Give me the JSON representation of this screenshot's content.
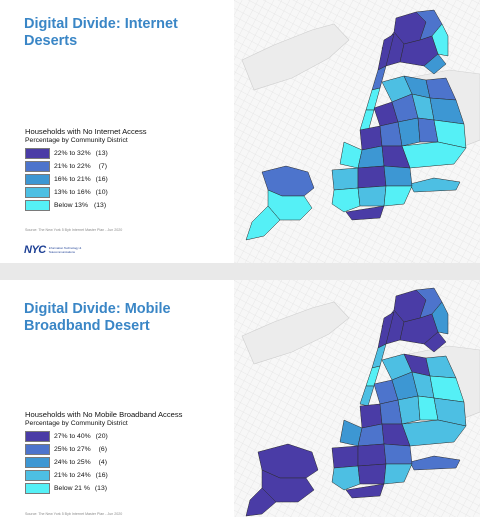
{
  "slides": [
    {
      "title": "Digital Divide: Internet Deserts",
      "legend": {
        "title": "Households with No Internet Access",
        "subtitle": "Percentage by Community District",
        "classes": [
          {
            "range": "22% to 32%",
            "count": "(13)",
            "color": "#4a3ca6"
          },
          {
            "range": "21% to 22%",
            "count": "(7)",
            "color": "#4d74cc"
          },
          {
            "range": "16% to 21%",
            "count": "(16)",
            "color": "#3d97d3"
          },
          {
            "range": "13% to 16%",
            "count": "(10)",
            "color": "#4dbfe3"
          },
          {
            "range": "Below 13%",
            "count": "(13)",
            "color": "#55f0f6"
          }
        ]
      },
      "source": "Source: The New York 5 Byb Internet Master Plan - Jun 2020",
      "logo": {
        "mark": "NYC",
        "agency": "Information Technology & Telecommunications"
      }
    },
    {
      "title": "Digital Divide: Mobile Broadband Desert",
      "legend": {
        "title": "Households with No Mobile Broadband Access",
        "subtitle": "Percentage by Community District",
        "classes": [
          {
            "range": "27% to 40%",
            "count": "(20)",
            "color": "#4a3ca6"
          },
          {
            "range": "25% to 27%",
            "count": "(6)",
            "color": "#4d74cc"
          },
          {
            "range": "24% to 25%",
            "count": "(4)",
            "color": "#3d97d3"
          },
          {
            "range": "21% to 24%",
            "count": "(16)",
            "color": "#4dbfe3"
          },
          {
            "range": "Below 21 %",
            "count": "(13)",
            "color": "#55f0f6"
          }
        ]
      },
      "source": "Source: The New York 5 Byb Internet Master Plan - Jun 2020"
    }
  ]
}
